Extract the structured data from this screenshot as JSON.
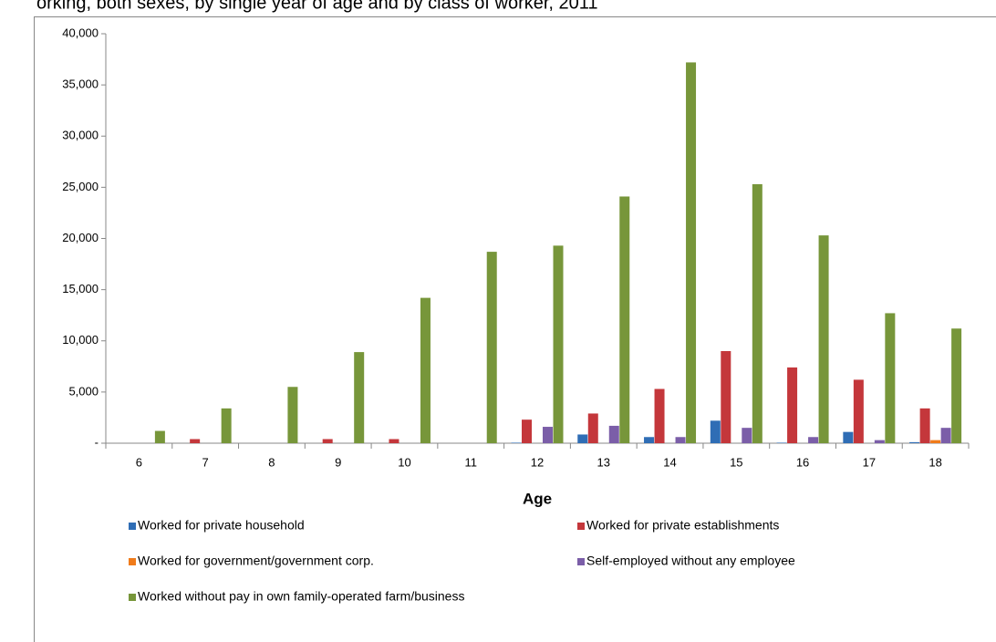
{
  "chart_data": {
    "type": "bar",
    "title": "orking, both sexes, by single year of age and by class of worker, 2011",
    "x_label": "Age",
    "categories": [
      "6",
      "7",
      "8",
      "9",
      "10",
      "11",
      "12",
      "13",
      "14",
      "15",
      "16",
      "17",
      "18"
    ],
    "series": [
      {
        "name": "Worked for private household",
        "color": "#2f6db5",
        "values": [
          0,
          0,
          0,
          0,
          0,
          0,
          50,
          850,
          600,
          2200,
          50,
          1100,
          100
        ]
      },
      {
        "name": "Worked for private establishments",
        "color": "#c4373b",
        "values": [
          0,
          400,
          0,
          400,
          400,
          0,
          2300,
          2900,
          5300,
          9000,
          7400,
          6200,
          3400
        ]
      },
      {
        "name": "Worked for government/government corp.",
        "color": "#f07b1a",
        "values": [
          0,
          0,
          0,
          0,
          0,
          0,
          0,
          0,
          0,
          0,
          0,
          0,
          300
        ]
      },
      {
        "name": "Self-employed without any employee",
        "color": "#7b5ea8",
        "values": [
          0,
          0,
          0,
          0,
          0,
          0,
          1600,
          1700,
          600,
          1500,
          600,
          300,
          1500
        ]
      },
      {
        "name": "Worked without pay in own family-operated farm/business",
        "color": "#77963a",
        "values": [
          1200,
          3400,
          5500,
          8900,
          14200,
          18700,
          19300,
          24100,
          37200,
          25300,
          20300,
          12700,
          11200
        ]
      }
    ],
    "ylim": [
      0,
      40000
    ],
    "yticks": [
      {
        "value": 0,
        "label": "-"
      },
      {
        "value": 5000,
        "label": "5,000"
      },
      {
        "value": 10000,
        "label": "10,000"
      },
      {
        "value": 15000,
        "label": "15,000"
      },
      {
        "value": 20000,
        "label": "20,000"
      },
      {
        "value": 25000,
        "label": "25,000"
      },
      {
        "value": 30000,
        "label": "30,000"
      },
      {
        "value": 35000,
        "label": "35,000"
      },
      {
        "value": 40000,
        "label": "40,000"
      }
    ],
    "grid": false
  }
}
